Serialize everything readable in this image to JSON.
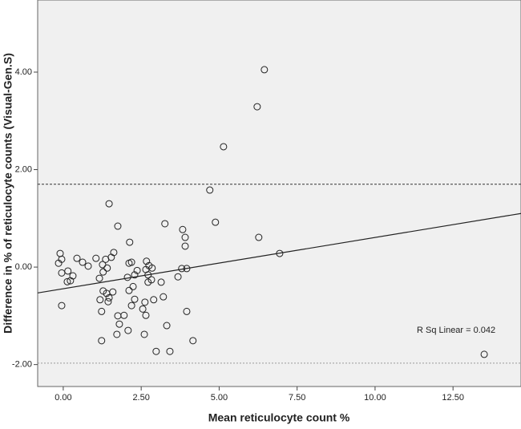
{
  "chart_data": {
    "type": "scatter",
    "x_label": "Mean reticulocyte count %",
    "y_label": "Difference in % of reticulocyte counts (Visual-Gen.S)",
    "annotation": "R Sq Linear = 0.042",
    "xlim": [
      -0.82,
      14.68
    ],
    "ylim": [
      -2.45,
      5.48
    ],
    "xticks": [
      {
        "value": 0,
        "label": "0.00"
      },
      {
        "value": 2.5,
        "label": "2.50"
      },
      {
        "value": 5,
        "label": "5.00"
      },
      {
        "value": 7.5,
        "label": "7.50"
      },
      {
        "value": 10,
        "label": "10.00"
      },
      {
        "value": 12.5,
        "label": "12.50"
      }
    ],
    "yticks": [
      {
        "value": -2,
        "label": "-2.00"
      },
      {
        "value": 0,
        "label": "0.00"
      },
      {
        "value": 2,
        "label": "2.00"
      },
      {
        "value": 4,
        "label": "4.00"
      }
    ],
    "reference_lines": [
      {
        "y": 1.7,
        "style": "dashed"
      },
      {
        "y": -1.97,
        "style": "dotted"
      }
    ],
    "fit_line": {
      "x": [
        -0.82,
        14.68
      ],
      "y": [
        -0.53,
        1.1
      ]
    },
    "series": [
      {
        "color": "#222222",
        "x": [
          6.45,
          6.22,
          5.14,
          4.7,
          4.88,
          6.27,
          6.94,
          13.5,
          1.47,
          1.75,
          3.26,
          3.83,
          3.91,
          3.91,
          2.13,
          -0.1,
          -0.05,
          -0.15,
          -0.05,
          0.15,
          0.23,
          0.13,
          0.31,
          0.44,
          0.62,
          0.8,
          1.05,
          1.36,
          1.54,
          1.62,
          1.26,
          1.41,
          1.28,
          1.16,
          1.28,
          1.39,
          1.47,
          1.44,
          1.18,
          1.59,
          1.23,
          -0.05,
          1.23,
          1.75,
          1.8,
          1.72,
          1.95,
          2.06,
          2.11,
          2.19,
          2.29,
          2.11,
          2.24,
          2.37,
          2.29,
          2.19,
          2.08,
          2.55,
          2.62,
          2.65,
          2.67,
          2.72,
          2.72,
          2.85,
          2.75,
          2.83,
          2.65,
          2.6,
          2.9,
          2.98,
          3.14,
          3.21,
          3.32,
          3.42,
          3.68,
          3.8,
          3.96,
          3.96,
          4.16
        ],
        "y": [
          4.05,
          3.29,
          2.47,
          1.58,
          0.92,
          0.61,
          0.28,
          -1.79,
          1.3,
          0.84,
          0.89,
          0.77,
          0.61,
          0.43,
          0.51,
          0.28,
          0.16,
          0.08,
          -0.12,
          -0.08,
          -0.28,
          -0.3,
          -0.18,
          0.18,
          0.1,
          0.02,
          0.18,
          0.16,
          0.2,
          0.3,
          0.05,
          -0.02,
          -0.1,
          -0.23,
          -0.49,
          -0.54,
          -0.63,
          -0.71,
          -0.67,
          -0.51,
          -0.91,
          -0.79,
          -1.51,
          -1.0,
          -1.17,
          -1.38,
          -0.99,
          -0.21,
          0.08,
          0.1,
          -0.16,
          -0.48,
          -0.4,
          -0.07,
          -0.66,
          -0.79,
          -1.3,
          -0.86,
          -0.72,
          -0.05,
          0.12,
          -0.16,
          -0.31,
          -0.02,
          0.03,
          -0.26,
          -0.99,
          -1.38,
          -0.67,
          -1.73,
          -0.31,
          -0.61,
          -1.2,
          -1.73,
          -0.2,
          -0.03,
          -0.03,
          -0.91,
          -1.51
        ]
      }
    ]
  }
}
